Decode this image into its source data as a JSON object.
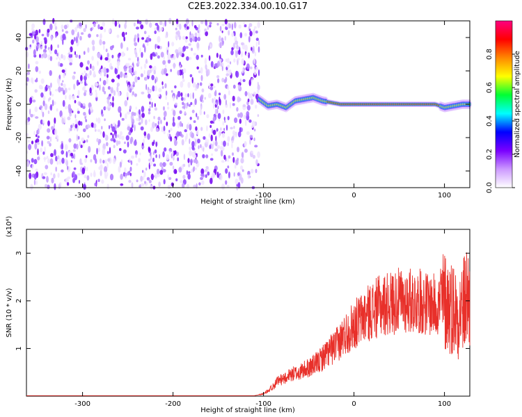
{
  "page": {
    "title": "C2E3.2022.334.00.10.G17"
  },
  "chart_data": [
    {
      "type": "heatmap",
      "title": "C2E3.2022.334.00.10.G17",
      "xlabel": "Height of straight line (km)",
      "ylabel": "Frequency (Hz)",
      "xlim": [
        -362,
        128
      ],
      "ylim": [
        -50,
        50
      ],
      "x_ticks": [
        -300,
        -200,
        -100,
        0,
        100
      ],
      "y_ticks": [
        -40,
        -20,
        0,
        20,
        40
      ],
      "noise_region": {
        "x_range": [
          -362,
          -105
        ],
        "y_range": [
          -50,
          50
        ]
      },
      "signal_track": {
        "x": [
          -105,
          -95,
          -85,
          -75,
          -65,
          -55,
          -45,
          -35,
          -25,
          -15,
          0,
          20,
          40,
          60,
          75,
          90,
          100,
          110,
          120,
          128
        ],
        "y": [
          3,
          -1,
          0,
          -2,
          2,
          3,
          4,
          2,
          1,
          0,
          0,
          0,
          0,
          0,
          0,
          0,
          -2,
          -1,
          0,
          0
        ]
      },
      "colorbar": {
        "label": "Normalized spectral amplitude",
        "range": [
          0,
          1
        ],
        "ticks": [
          0.0,
          0.2,
          0.4,
          0.6,
          0.8
        ],
        "colors": [
          "#ffffff",
          "#cc99ff",
          "#7a00ff",
          "#0000ff",
          "#00ffff",
          "#00ff33",
          "#ffff00",
          "#ff8800",
          "#ff0000",
          "#ff0080"
        ]
      }
    },
    {
      "type": "line",
      "xlabel": "Height of straight line (km)",
      "ylabel": "SNR (10 * v/v)",
      "y_multiplier": "(x10⁴)",
      "xlim": [
        -362,
        128
      ],
      "ylim": [
        0,
        3.5
      ],
      "x_ticks": [
        -300,
        -200,
        -100,
        0,
        100
      ],
      "y_ticks": [
        1,
        2,
        3
      ],
      "color": "#e8302a",
      "series": [
        {
          "x": [
            -362,
            -200,
            -110,
            -100,
            -95,
            -90,
            -85,
            -80,
            -75,
            -70,
            -60,
            -50,
            -40,
            -30,
            -20,
            -10,
            0,
            10,
            20,
            30,
            40,
            50,
            60,
            70,
            80,
            90,
            100,
            105,
            110,
            115,
            120,
            125,
            128
          ],
          "y": [
            0.01,
            0.01,
            0.01,
            0.05,
            0.12,
            0.2,
            0.3,
            0.35,
            0.4,
            0.45,
            0.5,
            0.6,
            0.7,
            0.9,
            1.05,
            1.3,
            1.5,
            1.65,
            1.8,
            1.9,
            1.95,
            2.0,
            2.0,
            2.0,
            1.95,
            1.9,
            2.0,
            1.9,
            1.85,
            1.7,
            1.85,
            2.1,
            2.0
          ]
        }
      ]
    }
  ]
}
